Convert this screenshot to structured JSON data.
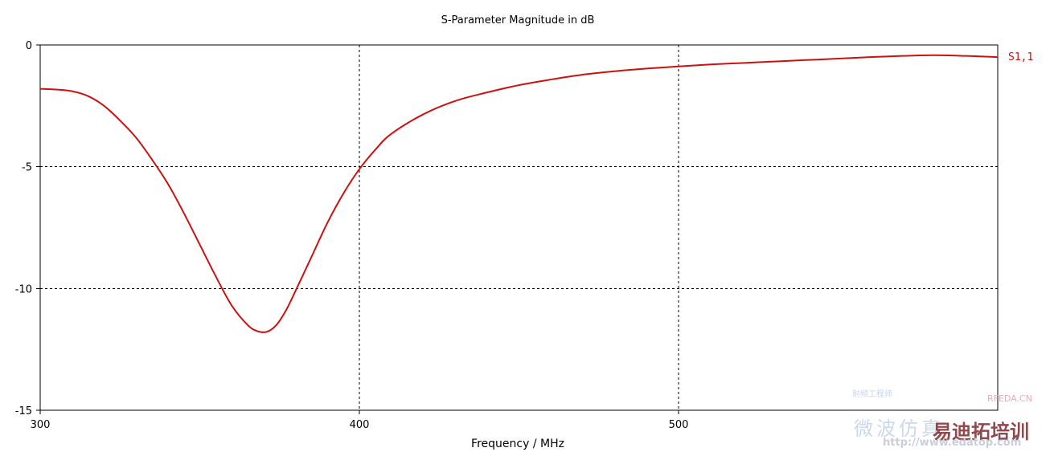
{
  "chart_data": {
    "type": "line",
    "title": "S-Parameter Magnitude in dB",
    "xlabel": "Frequency / MHz",
    "ylabel": "",
    "xlim": [
      300,
      600
    ],
    "ylim": [
      -15,
      0
    ],
    "x_ticks": [
      300,
      400,
      500
    ],
    "y_ticks": [
      0,
      -5,
      -10,
      -15
    ],
    "x_tick_labels": [
      "300",
      "400",
      "500"
    ],
    "y_tick_labels": [
      "0",
      "-5",
      "-10",
      "-15"
    ],
    "grid": true,
    "series": [
      {
        "name": "S1,1",
        "color": "#cc1111",
        "x": [
          300,
          305,
          310,
          315,
          320,
          325,
          330,
          335,
          340,
          345,
          350,
          355,
          360,
          365,
          368,
          371,
          374,
          377,
          380,
          385,
          390,
          395,
          400,
          405,
          410,
          420,
          430,
          440,
          450,
          460,
          470,
          480,
          490,
          500,
          510,
          520,
          530,
          540,
          550,
          560,
          570,
          580,
          590,
          600
        ],
        "y": [
          -1.8,
          -1.83,
          -1.9,
          -2.1,
          -2.5,
          -3.1,
          -3.8,
          -4.7,
          -5.7,
          -6.9,
          -8.2,
          -9.5,
          -10.7,
          -11.5,
          -11.75,
          -11.78,
          -11.5,
          -10.9,
          -10.1,
          -8.7,
          -7.3,
          -6.1,
          -5.1,
          -4.3,
          -3.65,
          -2.85,
          -2.3,
          -1.95,
          -1.65,
          -1.42,
          -1.22,
          -1.08,
          -0.97,
          -0.88,
          -0.8,
          -0.74,
          -0.68,
          -0.62,
          -0.56,
          -0.5,
          -0.45,
          -0.42,
          -0.45,
          -0.5
        ]
      }
    ]
  },
  "watermark": {
    "url": "http://www.edatop.com",
    "brand": "易迪拓培训",
    "cn": "微波仿真",
    "rfeda": "RFEDA.CN",
    "small": "射频工程师"
  }
}
